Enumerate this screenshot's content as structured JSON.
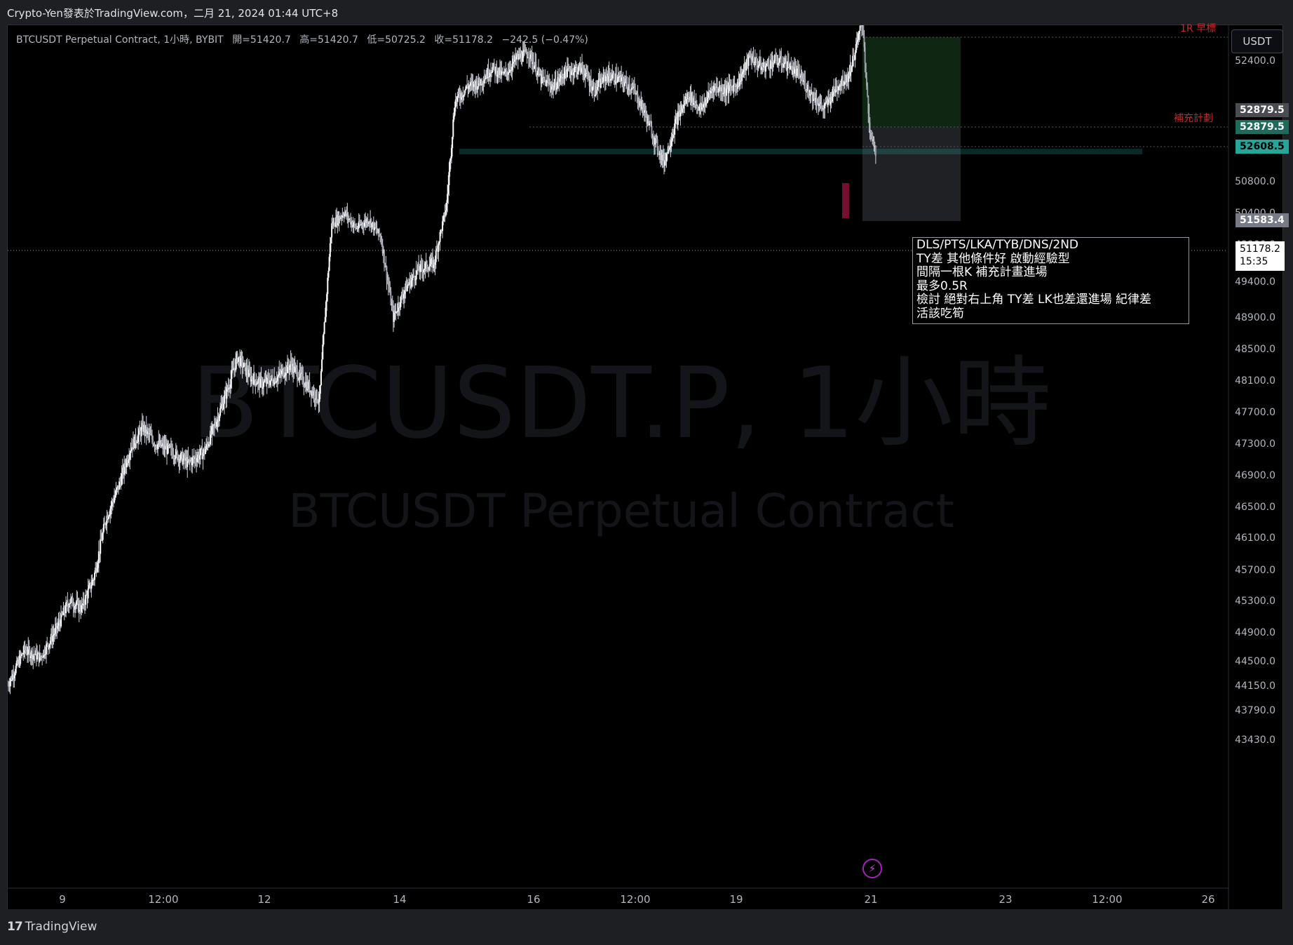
{
  "header": {
    "publisher_line": "Crypto-Yen發表於TradingView.com，二月 21, 2024 01:44 UTC+8"
  },
  "legend": {
    "symbol_line": "BTCUSDT Perpetual Contract, 1小時, BYBIT",
    "open": "開=51420.7",
    "high": "高=51420.7",
    "low": "低=50725.2",
    "close": "收=51178.2",
    "change": "−242.5 (−0.47%)"
  },
  "watermark": {
    "symbol": "BTCUSDT.P, 1小時",
    "description": "BTCUSDT Perpetual Contract"
  },
  "currency_button": "USDT",
  "price_labels": {
    "top_gray": "52879.5",
    "entry_green": "52879.5",
    "level_teal": "52608.5",
    "stop_gray": "51583.4",
    "last_price": "51178.2",
    "countdown": "15:35"
  },
  "zone_labels": {
    "target": "1R 早標",
    "plan": "補充計劃"
  },
  "note": {
    "line1": "DLS/PTS/LKA/TYB/DNS/2ND",
    "line2": "TY差 其他條件好 啟動經驗型",
    "line3": "間隔一根K 補充計畫進場",
    "line4": "最多0.5R",
    "line5": "檢討 絕對右上角 TY差 LK也差還進場 紀律差",
    "line6": "活該吃筍"
  },
  "footer": {
    "logo_text": "TradingView"
  },
  "colors": {
    "candle": "#ffffff",
    "teal": "#26a69a",
    "profit_zone": "#1b5e20",
    "loss_zone": "#434651",
    "marker": "#e91e63"
  },
  "chart_data": {
    "type": "candlestick",
    "title": "BTCUSDT Perpetual Contract, 1小時, BYBIT",
    "y_ticks": [
      43430,
      43790,
      44150,
      44500,
      44900,
      45300,
      45700,
      46100,
      46500,
      46900,
      47300,
      47700,
      48100,
      48500,
      48900,
      49400,
      49900,
      50400,
      50800,
      52400
    ],
    "y_tick_labels": [
      "43430.0",
      "43790.0",
      "44150.0",
      "44500.0",
      "44900.0",
      "45300.0",
      "45700.0",
      "46100.0",
      "46500.0",
      "46900.0",
      "47300.0",
      "47700.0",
      "48100.0",
      "48500.0",
      "48900.0",
      "49400.0",
      "49900.0",
      "50400.0",
      "50800.0",
      "52400.0"
    ],
    "x_ticks": [
      "9",
      "12:00",
      "12",
      "14",
      "16",
      "12:00",
      "19",
      "21",
      "23",
      "12:00",
      "26"
    ],
    "price_path": [
      [
        0,
        44150
      ],
      [
        20,
        44650
      ],
      [
        40,
        44550
      ],
      [
        60,
        44950
      ],
      [
        75,
        45300
      ],
      [
        90,
        45200
      ],
      [
        105,
        45600
      ],
      [
        120,
        46350
      ],
      [
        135,
        46750
      ],
      [
        150,
        47250
      ],
      [
        165,
        47500
      ],
      [
        180,
        47300
      ],
      [
        200,
        47200
      ],
      [
        220,
        47050
      ],
      [
        240,
        47200
      ],
      [
        255,
        47600
      ],
      [
        270,
        48050
      ],
      [
        280,
        48400
      ],
      [
        295,
        48150
      ],
      [
        310,
        48050
      ],
      [
        330,
        48150
      ],
      [
        345,
        48300
      ],
      [
        360,
        48100
      ],
      [
        380,
        47850
      ],
      [
        395,
        50200
      ],
      [
        410,
        50400
      ],
      [
        425,
        50150
      ],
      [
        440,
        50300
      ],
      [
        455,
        50000
      ],
      [
        470,
        48900
      ],
      [
        485,
        49300
      ],
      [
        500,
        49550
      ],
      [
        520,
        49650
      ],
      [
        535,
        50500
      ],
      [
        545,
        51850
      ],
      [
        560,
        52050
      ],
      [
        575,
        52100
      ],
      [
        590,
        52300
      ],
      [
        605,
        52200
      ],
      [
        620,
        52420
      ],
      [
        635,
        52500
      ],
      [
        650,
        52150
      ],
      [
        665,
        52050
      ],
      [
        680,
        52250
      ],
      [
        700,
        52300
      ],
      [
        715,
        52000
      ],
      [
        730,
        52200
      ],
      [
        745,
        52150
      ],
      [
        760,
        52050
      ],
      [
        775,
        51750
      ],
      [
        790,
        51300
      ],
      [
        800,
        51050
      ],
      [
        815,
        51600
      ],
      [
        830,
        51950
      ],
      [
        845,
        51750
      ],
      [
        860,
        52050
      ],
      [
        875,
        52000
      ],
      [
        890,
        52100
      ],
      [
        905,
        52450
      ],
      [
        920,
        52300
      ],
      [
        935,
        52400
      ],
      [
        950,
        52350
      ],
      [
        965,
        52200
      ],
      [
        980,
        51950
      ],
      [
        995,
        51750
      ],
      [
        1010,
        52050
      ],
      [
        1025,
        52200
      ],
      [
        1035,
        52600
      ],
      [
        1042,
        52950
      ],
      [
        1050,
        51500
      ],
      [
        1058,
        51180
      ]
    ],
    "levels": {
      "plan_entry": 52879.5,
      "teal_level": 52608.5,
      "stop": 51583.4,
      "last": 51178.2
    }
  }
}
